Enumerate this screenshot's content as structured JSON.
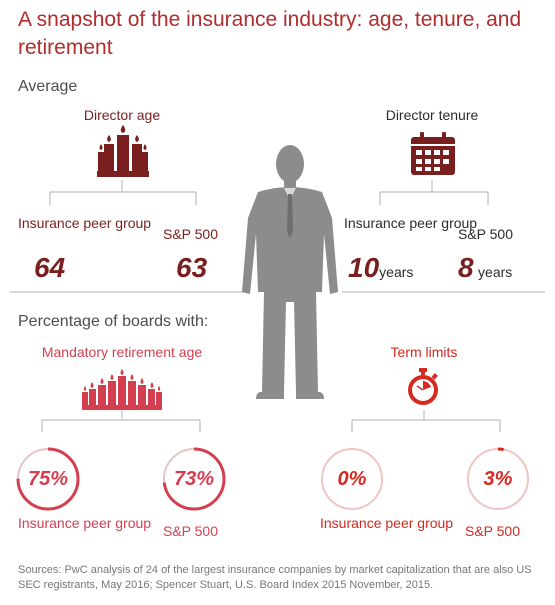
{
  "title": "A snapshot of the insurance industry: age, tenure, and retirement",
  "sections": {
    "average": "Average",
    "percentage": "Percentage of boards with:"
  },
  "director_age": {
    "label": "Director age",
    "left_label": "Insurance peer group",
    "left_value": "64",
    "right_label": "S&P 500",
    "right_value": "63"
  },
  "director_tenure": {
    "label": "Director tenure",
    "left_label": "Insurance peer group",
    "left_value": "10",
    "left_unit": "years",
    "right_label": "S&P 500",
    "right_value": "8",
    "right_unit": "years"
  },
  "mandatory_retirement": {
    "label": "Mandatory retirement age",
    "left_label": "Insurance peer group",
    "left_value": "75%",
    "left_fraction": 0.75,
    "right_label": "S&P 500",
    "right_value": "73%",
    "right_fraction": 0.73
  },
  "term_limits": {
    "label": "Term limits",
    "left_label": "Insurance peer group",
    "left_value": "0%",
    "left_fraction": 0.0,
    "right_label": "S&P 500",
    "right_value": "3%",
    "right_fraction": 0.03
  },
  "colors": {
    "title": "#b22c2c",
    "dark_red": "#7a1f1f",
    "pink": "#d43f50",
    "red": "#d6281f",
    "ring_track": "#e6c3c6",
    "figure": "#8c8c8c"
  },
  "icons": [
    "candles-icon",
    "calendar-icon",
    "candles-many-icon",
    "stopwatch-icon",
    "person-figure-icon"
  ],
  "source": "Sources: PwC analysis of 24 of the largest insurance companies by market capitalization that are also US SEC registrants, May 2016; Spencer Stuart, U.S. Board Index 2015 November, 2015."
}
